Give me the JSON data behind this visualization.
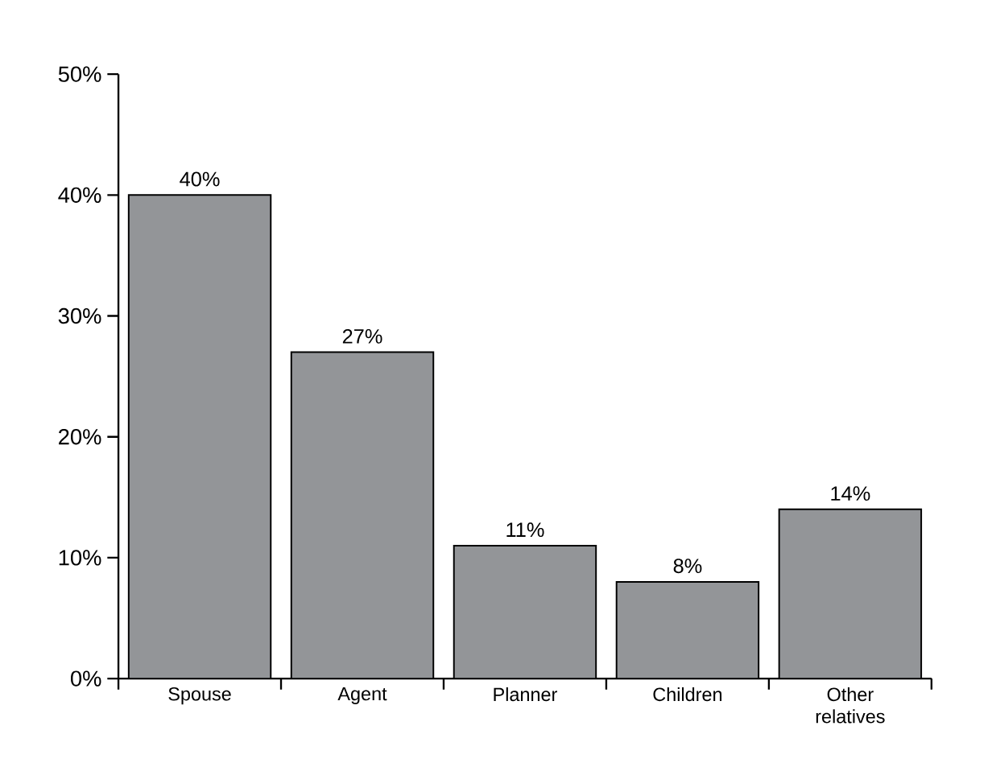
{
  "chart_data": {
    "type": "bar",
    "categories": [
      "Spouse",
      "Agent",
      "Planner",
      "Children",
      "Other relatives"
    ],
    "values": [
      40,
      27,
      11,
      8,
      14
    ],
    "value_labels": [
      "40%",
      "27%",
      "11%",
      "8%",
      "14%"
    ],
    "color": "#939598",
    "ylim": [
      0,
      50
    ],
    "yticks": [
      {
        "value": 0,
        "label": "0%"
      },
      {
        "value": 10,
        "label": "10%"
      },
      {
        "value": 20,
        "label": "20%"
      },
      {
        "value": 30,
        "label": "30%"
      },
      {
        "value": 40,
        "label": "40%"
      },
      {
        "value": 50,
        "label": "50%"
      }
    ],
    "grid": false
  }
}
